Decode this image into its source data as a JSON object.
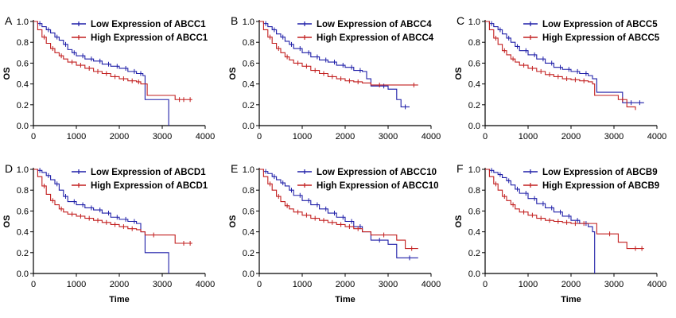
{
  "chart_data": [
    {
      "type": "line",
      "panel_label": "A",
      "xlabel": "",
      "ylabel": "OS",
      "xlim": [
        0,
        4000
      ],
      "ylim": [
        0,
        1.0
      ],
      "x_ticks": [
        "0",
        "1000",
        "2000",
        "3000",
        "4000"
      ],
      "y_ticks": [
        "0.0",
        "0.2",
        "0.4",
        "0.6",
        "0.8",
        "1.0"
      ],
      "legend_position": "top-right",
      "series": [
        {
          "name": "Low Expression of ABCC1",
          "color": "#1f1fa8",
          "step": true,
          "x": [
            0,
            100,
            200,
            300,
            400,
            500,
            600,
            700,
            800,
            900,
            1000,
            1200,
            1400,
            1600,
            1800,
            2000,
            2200,
            2400,
            2550,
            2600,
            3100,
            3150
          ],
          "y": [
            1.0,
            0.98,
            0.95,
            0.92,
            0.89,
            0.85,
            0.82,
            0.78,
            0.73,
            0.7,
            0.67,
            0.64,
            0.62,
            0.59,
            0.57,
            0.55,
            0.52,
            0.5,
            0.48,
            0.25,
            0.25,
            0.0
          ],
          "censor_x": [
            150,
            350,
            550,
            750,
            950,
            1150,
            1350,
            1550,
            1750,
            1950,
            2150,
            2350,
            2500
          ]
        },
        {
          "name": "High Expression of ABCC1",
          "color": "#c21f1f",
          "step": true,
          "x": [
            0,
            100,
            200,
            300,
            400,
            500,
            600,
            700,
            800,
            1000,
            1200,
            1400,
            1600,
            1800,
            2000,
            2200,
            2400,
            2500,
            2650,
            3300,
            3700
          ],
          "y": [
            1.0,
            0.92,
            0.85,
            0.79,
            0.74,
            0.7,
            0.67,
            0.64,
            0.61,
            0.58,
            0.55,
            0.52,
            0.5,
            0.47,
            0.45,
            0.43,
            0.42,
            0.4,
            0.29,
            0.25,
            0.25
          ],
          "censor_x": [
            250,
            450,
            650,
            900,
            1100,
            1300,
            1500,
            1700,
            1900,
            2100,
            2300,
            2450,
            3400,
            3500,
            3650
          ]
        }
      ]
    },
    {
      "type": "line",
      "panel_label": "B",
      "xlabel": "",
      "ylabel": "OS",
      "xlim": [
        0,
        4000
      ],
      "ylim": [
        0,
        1.0
      ],
      "x_ticks": [
        "0",
        "1000",
        "2000",
        "3000",
        "4000"
      ],
      "y_ticks": [
        "0.0",
        "0.2",
        "0.4",
        "0.6",
        "0.8",
        "1.0"
      ],
      "legend_position": "top-right",
      "series": [
        {
          "name": "Low Expression of ABCC4",
          "color": "#1f1fa8",
          "step": true,
          "x": [
            0,
            100,
            200,
            300,
            400,
            500,
            600,
            700,
            800,
            1000,
            1200,
            1400,
            1600,
            1800,
            2000,
            2200,
            2400,
            2500,
            2600,
            3000,
            3200,
            3300,
            3500
          ],
          "y": [
            1.0,
            0.98,
            0.95,
            0.92,
            0.88,
            0.85,
            0.81,
            0.78,
            0.74,
            0.7,
            0.66,
            0.63,
            0.61,
            0.58,
            0.56,
            0.53,
            0.52,
            0.45,
            0.38,
            0.35,
            0.25,
            0.18,
            0.18
          ],
          "censor_x": [
            150,
            350,
            550,
            750,
            950,
            1150,
            1350,
            1550,
            1750,
            1950,
            2150,
            2350,
            2900,
            3400
          ]
        },
        {
          "name": "High Expression of ABCC4",
          "color": "#c21f1f",
          "step": true,
          "x": [
            0,
            100,
            200,
            300,
            400,
            500,
            600,
            700,
            800,
            1000,
            1200,
            1400,
            1600,
            1800,
            2000,
            2200,
            2400,
            2600,
            3700
          ],
          "y": [
            1.0,
            0.92,
            0.85,
            0.79,
            0.74,
            0.7,
            0.66,
            0.63,
            0.6,
            0.57,
            0.53,
            0.5,
            0.47,
            0.45,
            0.43,
            0.42,
            0.41,
            0.39,
            0.39
          ],
          "censor_x": [
            250,
            450,
            650,
            900,
            1100,
            1300,
            1500,
            1700,
            1900,
            2100,
            2300,
            2800,
            3600
          ]
        }
      ]
    },
    {
      "type": "line",
      "panel_label": "C",
      "xlabel": "",
      "ylabel": "OS",
      "xlim": [
        0,
        4000
      ],
      "ylim": [
        0,
        1.0
      ],
      "x_ticks": [
        "0",
        "1000",
        "2000",
        "3000",
        "4000"
      ],
      "y_ticks": [
        "0.0",
        "0.2",
        "0.4",
        "0.6",
        "0.8",
        "1.0"
      ],
      "legend_position": "top-right",
      "series": [
        {
          "name": "Low Expression of ABCC5",
          "color": "#1f1fa8",
          "step": true,
          "x": [
            0,
            100,
            200,
            300,
            400,
            500,
            600,
            700,
            800,
            1000,
            1200,
            1400,
            1600,
            1800,
            2000,
            2200,
            2400,
            2500,
            2600,
            3000,
            3200,
            3700
          ],
          "y": [
            1.0,
            0.98,
            0.95,
            0.92,
            0.88,
            0.84,
            0.8,
            0.76,
            0.72,
            0.68,
            0.64,
            0.6,
            0.56,
            0.54,
            0.52,
            0.5,
            0.48,
            0.45,
            0.32,
            0.32,
            0.22,
            0.22
          ],
          "censor_x": [
            150,
            350,
            550,
            750,
            950,
            1150,
            1350,
            1550,
            1750,
            1950,
            2150,
            2350,
            3400,
            3600
          ]
        },
        {
          "name": "High Expression of ABCC5",
          "color": "#c21f1f",
          "step": true,
          "x": [
            0,
            100,
            200,
            300,
            400,
            500,
            600,
            700,
            800,
            1000,
            1200,
            1400,
            1600,
            1800,
            2000,
            2200,
            2400,
            2500,
            2550,
            3100,
            3300,
            3500
          ],
          "y": [
            1.0,
            0.92,
            0.84,
            0.78,
            0.72,
            0.68,
            0.64,
            0.61,
            0.58,
            0.55,
            0.52,
            0.49,
            0.47,
            0.45,
            0.44,
            0.43,
            0.42,
            0.4,
            0.29,
            0.25,
            0.18,
            0.15
          ],
          "censor_x": [
            250,
            450,
            650,
            900,
            1100,
            1300,
            1500,
            1700,
            1900,
            2100,
            2300,
            3200
          ]
        }
      ]
    },
    {
      "type": "line",
      "panel_label": "D",
      "xlabel": "Time",
      "ylabel": "OS",
      "xlim": [
        0,
        4000
      ],
      "ylim": [
        0,
        1.0
      ],
      "x_ticks": [
        "0",
        "1000",
        "2000",
        "3000",
        "4000"
      ],
      "y_ticks": [
        "0.0",
        "0.2",
        "0.4",
        "0.6",
        "0.8",
        "1.0"
      ],
      "legend_position": "top-right",
      "series": [
        {
          "name": "Low Expression of ABCD1",
          "color": "#1f1fa8",
          "step": true,
          "x": [
            0,
            100,
            200,
            300,
            400,
            500,
            600,
            700,
            800,
            1000,
            1200,
            1400,
            1600,
            1800,
            2000,
            2200,
            2400,
            2500,
            2600,
            3100,
            3150
          ],
          "y": [
            1.0,
            0.99,
            0.97,
            0.94,
            0.9,
            0.86,
            0.8,
            0.74,
            0.69,
            0.66,
            0.63,
            0.61,
            0.58,
            0.54,
            0.52,
            0.5,
            0.48,
            0.4,
            0.2,
            0.2,
            0.0
          ],
          "censor_x": [
            150,
            350,
            550,
            750,
            950,
            1150,
            1350,
            1550,
            1750,
            1950,
            2150,
            2350
          ]
        },
        {
          "name": "High Expression of ABCD1",
          "color": "#c21f1f",
          "step": true,
          "x": [
            0,
            100,
            200,
            300,
            400,
            500,
            600,
            700,
            800,
            1000,
            1200,
            1400,
            1600,
            1800,
            2000,
            2200,
            2400,
            2500,
            2600,
            3300,
            3700
          ],
          "y": [
            1.0,
            0.93,
            0.84,
            0.76,
            0.7,
            0.66,
            0.62,
            0.59,
            0.57,
            0.55,
            0.53,
            0.51,
            0.49,
            0.47,
            0.45,
            0.43,
            0.42,
            0.4,
            0.37,
            0.29,
            0.29
          ],
          "censor_x": [
            250,
            450,
            650,
            900,
            1100,
            1300,
            1500,
            1700,
            1900,
            2100,
            2300,
            2800,
            3500,
            3650
          ]
        }
      ]
    },
    {
      "type": "line",
      "panel_label": "E",
      "xlabel": "Time",
      "ylabel": "OS",
      "xlim": [
        0,
        4000
      ],
      "ylim": [
        0,
        1.0
      ],
      "x_ticks": [
        "0",
        "1000",
        "2000",
        "3000",
        "4000"
      ],
      "y_ticks": [
        "0.0",
        "0.2",
        "0.4",
        "0.6",
        "0.8",
        "1.0"
      ],
      "legend_position": "top-right",
      "series": [
        {
          "name": "Low Expression of ABCC10",
          "color": "#1f1fa8",
          "step": true,
          "x": [
            0,
            100,
            200,
            300,
            400,
            500,
            600,
            700,
            800,
            1000,
            1200,
            1400,
            1600,
            1800,
            2000,
            2200,
            2400,
            2600,
            3000,
            3200,
            3700
          ],
          "y": [
            1.0,
            0.98,
            0.96,
            0.93,
            0.9,
            0.87,
            0.84,
            0.8,
            0.75,
            0.7,
            0.66,
            0.62,
            0.58,
            0.54,
            0.5,
            0.45,
            0.4,
            0.32,
            0.28,
            0.15,
            0.15
          ],
          "censor_x": [
            150,
            350,
            550,
            750,
            950,
            1150,
            1350,
            1550,
            1750,
            1950,
            2150,
            2350,
            2800,
            3500
          ]
        },
        {
          "name": "High Expression of ABCC10",
          "color": "#c21f1f",
          "step": true,
          "x": [
            0,
            100,
            200,
            300,
            400,
            500,
            600,
            700,
            800,
            1000,
            1200,
            1400,
            1600,
            1800,
            2000,
            2200,
            2400,
            2600,
            3200,
            3400,
            3700
          ],
          "y": [
            1.0,
            0.93,
            0.86,
            0.8,
            0.74,
            0.69,
            0.65,
            0.62,
            0.59,
            0.56,
            0.53,
            0.51,
            0.49,
            0.47,
            0.45,
            0.43,
            0.4,
            0.37,
            0.32,
            0.24,
            0.24
          ],
          "censor_x": [
            250,
            450,
            650,
            900,
            1100,
            1300,
            1500,
            1700,
            1900,
            2100,
            2300,
            2900,
            3550
          ]
        }
      ]
    },
    {
      "type": "line",
      "panel_label": "F",
      "xlabel": "Time",
      "ylabel": "OS",
      "xlim": [
        0,
        4000
      ],
      "ylim": [
        0,
        1.0
      ],
      "x_ticks": [
        "0",
        "1000",
        "2000",
        "3000",
        "4000"
      ],
      "y_ticks": [
        "0.0",
        "0.2",
        "0.4",
        "0.6",
        "0.8",
        "1.0"
      ],
      "legend_position": "top-right",
      "series": [
        {
          "name": "Low Expression of ABCB9",
          "color": "#1f1fa8",
          "step": true,
          "x": [
            0,
            100,
            200,
            300,
            400,
            500,
            600,
            700,
            800,
            1000,
            1200,
            1400,
            1600,
            1800,
            2000,
            2200,
            2400,
            2500,
            2550
          ],
          "y": [
            1.0,
            0.99,
            0.97,
            0.95,
            0.92,
            0.89,
            0.85,
            0.81,
            0.77,
            0.72,
            0.67,
            0.63,
            0.59,
            0.55,
            0.51,
            0.48,
            0.45,
            0.4,
            0.0
          ],
          "censor_x": [
            150,
            350,
            550,
            750,
            950,
            1150,
            1350,
            1550,
            1750,
            1950,
            2150,
            2350
          ]
        },
        {
          "name": "High Expression of ABCB9",
          "color": "#c21f1f",
          "step": true,
          "x": [
            0,
            100,
            200,
            300,
            400,
            500,
            600,
            700,
            800,
            1000,
            1200,
            1400,
            1600,
            1800,
            2000,
            2200,
            2400,
            2600,
            3100,
            3300,
            3700
          ],
          "y": [
            1.0,
            0.93,
            0.86,
            0.8,
            0.74,
            0.7,
            0.66,
            0.62,
            0.59,
            0.56,
            0.53,
            0.51,
            0.5,
            0.49,
            0.48,
            0.48,
            0.48,
            0.38,
            0.3,
            0.24,
            0.24
          ],
          "censor_x": [
            250,
            450,
            650,
            900,
            1100,
            1300,
            1500,
            1700,
            1900,
            2100,
            2300,
            2900,
            3500,
            3650
          ]
        }
      ]
    }
  ]
}
